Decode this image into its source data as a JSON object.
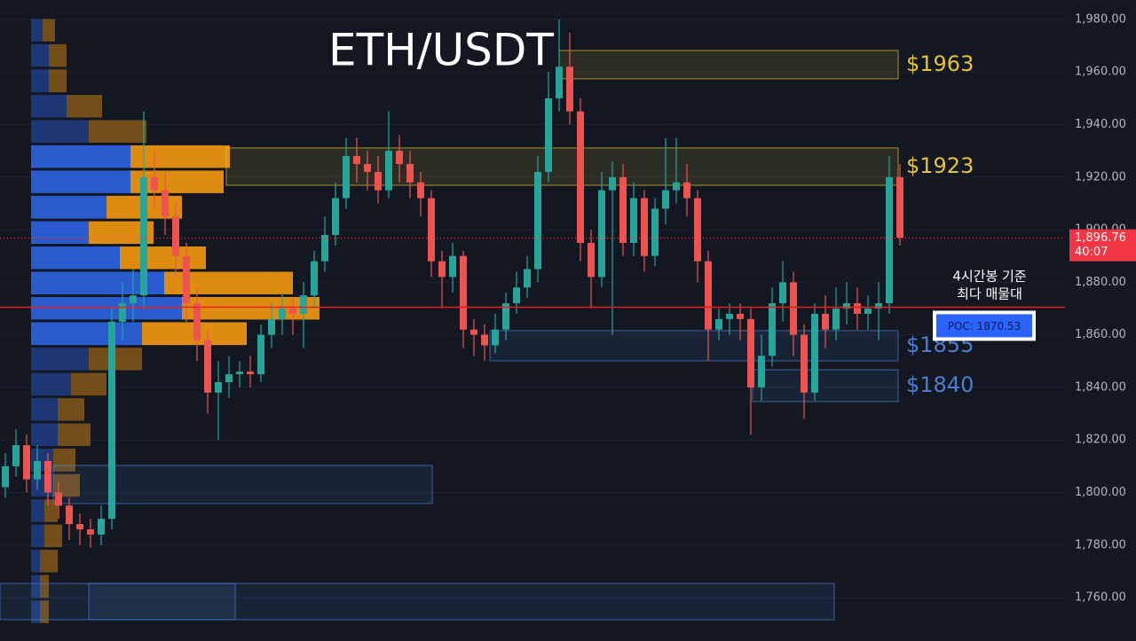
{
  "chart_data": {
    "type": "candlestick",
    "title": "ETH/USDT",
    "ylim": [
      1743.5,
      1987.4
    ],
    "yticks": [
      {
        "value": 1980,
        "label": "1,980.00"
      },
      {
        "value": 1960,
        "label": "1,960.00"
      },
      {
        "value": 1940,
        "label": "1,940.00"
      },
      {
        "value": 1920,
        "label": "1,920.00"
      },
      {
        "value": 1900,
        "label": "1,900.00"
      },
      {
        "value": 1880,
        "label": "1,880.00"
      },
      {
        "value": 1860,
        "label": "1,860.00"
      },
      {
        "value": 1840,
        "label": "1,840.00"
      },
      {
        "value": 1820,
        "label": "1,820.00"
      },
      {
        "value": 1800,
        "label": "1,800.00"
      },
      {
        "value": 1780,
        "label": "1,780.00"
      },
      {
        "value": 1760,
        "label": "1,760.00"
      }
    ],
    "up_color": "#26a69a",
    "down_color": "#ef5350",
    "open": [
      1802,
      1810,
      1818,
      1805,
      1812,
      1800,
      1795,
      1788,
      1786,
      1784,
      1790,
      1865,
      1872,
      1875,
      1920,
      1915,
      1905,
      1890,
      1872,
      1858,
      1838,
      1842,
      1845,
      1846,
      1845,
      1860,
      1866,
      1870,
      1868,
      1875,
      1888,
      1898,
      1912,
      1928,
      1925,
      1922,
      1915,
      1930,
      1925,
      1918,
      1912,
      1888,
      1882,
      1890,
      1862,
      1860,
      1856,
      1862,
      1872,
      1878,
      1885,
      1922,
      1950,
      1962,
      1945,
      1895,
      1882,
      1915,
      1920,
      1895,
      1912,
      1890,
      1908,
      1915,
      1918,
      1912,
      1888,
      1862,
      1866,
      1868,
      1866,
      1840,
      1852,
      1872,
      1880,
      1860,
      1838,
      1868,
      1862,
      1870,
      1872,
      1868,
      1870,
      1872,
      1920
    ],
    "high": [
      1815,
      1824,
      1822,
      1818,
      1815,
      1804,
      1798,
      1792,
      1790,
      1795,
      1870,
      1880,
      1885,
      1945,
      1930,
      1922,
      1910,
      1895,
      1878,
      1862,
      1850,
      1852,
      1850,
      1852,
      1864,
      1872,
      1876,
      1874,
      1880,
      1892,
      1905,
      1918,
      1935,
      1935,
      1930,
      1928,
      1945,
      1936,
      1930,
      1922,
      1915,
      1892,
      1895,
      1892,
      1866,
      1864,
      1868,
      1876,
      1884,
      1890,
      1928,
      1960,
      1980,
      1975,
      1950,
      1900,
      1922,
      1926,
      1925,
      1918,
      1915,
      1912,
      1935,
      1935,
      1925,
      1915,
      1892,
      1870,
      1872,
      1872,
      1870,
      1860,
      1878,
      1888,
      1884,
      1864,
      1872,
      1875,
      1878,
      1880,
      1878,
      1875,
      1880,
      1928,
      1925
    ],
    "low": [
      1798,
      1806,
      1800,
      1801,
      1795,
      1790,
      1782,
      1780,
      1779,
      1780,
      1786,
      1858,
      1865,
      1870,
      1908,
      1898,
      1882,
      1865,
      1850,
      1830,
      1820,
      1836,
      1840,
      1840,
      1842,
      1855,
      1860,
      1860,
      1855,
      1870,
      1884,
      1894,
      1908,
      1918,
      1915,
      1910,
      1912,
      1918,
      1912,
      1905,
      1882,
      1870,
      1876,
      1855,
      1852,
      1850,
      1853,
      1858,
      1868,
      1874,
      1880,
      1918,
      1945,
      1940,
      1888,
      1870,
      1878,
      1860,
      1890,
      1890,
      1884,
      1886,
      1902,
      1910,
      1905,
      1880,
      1850,
      1858,
      1860,
      1858,
      1822,
      1835,
      1848,
      1865,
      1852,
      1828,
      1835,
      1855,
      1858,
      1864,
      1862,
      1862,
      1858,
      1868,
      1894
    ],
    "close": [
      1810,
      1818,
      1805,
      1812,
      1800,
      1795,
      1788,
      1786,
      1784,
      1790,
      1865,
      1872,
      1875,
      1920,
      1915,
      1905,
      1890,
      1872,
      1858,
      1838,
      1842,
      1845,
      1846,
      1845,
      1860,
      1866,
      1870,
      1868,
      1875,
      1888,
      1898,
      1912,
      1928,
      1925,
      1922,
      1915,
      1930,
      1925,
      1918,
      1912,
      1888,
      1882,
      1890,
      1862,
      1860,
      1856,
      1862,
      1872,
      1878,
      1885,
      1922,
      1950,
      1962,
      1945,
      1895,
      1882,
      1915,
      1920,
      1895,
      1912,
      1890,
      1908,
      1915,
      1918,
      1912,
      1888,
      1862,
      1866,
      1868,
      1866,
      1840,
      1852,
      1872,
      1880,
      1860,
      1838,
      1868,
      1862,
      1870,
      1872,
      1868,
      1870,
      1872,
      1920,
      1897
    ],
    "volume_profile": {
      "bins": [
        1980.7,
        1971.1,
        1961.5,
        1951.8,
        1942.2,
        1932.6,
        1923.0,
        1913.4,
        1903.7,
        1894.1,
        1884.5,
        1874.9,
        1865.3,
        1855.6,
        1846.0,
        1836.4,
        1826.8,
        1817.2,
        1807.5,
        1797.9,
        1788.3,
        1778.7,
        1769.1,
        1759.4,
        1749.8
      ],
      "buy": [
        13,
        20,
        20,
        40,
        65,
        112,
        112,
        85,
        65,
        100,
        150,
        170,
        125,
        65,
        45,
        30,
        30,
        25,
        25,
        15,
        15,
        10,
        10,
        10
      ],
      "sell": [
        14,
        20,
        20,
        40,
        65,
        112,
        105,
        85,
        73,
        97,
        145,
        155,
        118,
        60,
        40,
        30,
        37,
        25,
        30,
        15,
        20,
        20,
        10,
        10
      ],
      "buy_color": "#2b5fd9",
      "sell_color": "#e8920f"
    },
    "zones": [
      {
        "label": "$1963",
        "low": 1957.4,
        "high": 1968.2,
        "color": "#e5c23a"
      },
      {
        "label": "$1923",
        "low": 1916.9,
        "high": 1931.1,
        "color": "#e5c23a"
      },
      {
        "label": "$1855",
        "low": 1850.1,
        "high": 1861.6,
        "color": "#4a7fd0"
      },
      {
        "label": "$1840",
        "low": 1834.6,
        "high": 1846.7,
        "color": "#4a7fd0"
      },
      {
        "low": 1795.8,
        "high": 1810.3,
        "color": "#4a7fd0"
      },
      {
        "low": 1751.6,
        "high": 1765.4,
        "color": "#4a7fd0"
      },
      {
        "low": 1751.6,
        "high": 1765.4,
        "color": "#4a7fd0"
      }
    ],
    "poc": {
      "value": 1870.53,
      "label": "POC: 1870.53",
      "color": "#f01f1f"
    },
    "annotation": [
      "4시간봉 기준",
      "최다 매물대"
    ],
    "current_price": {
      "value": 1896.76,
      "label": "1,896.76",
      "countdown": "40:07"
    }
  }
}
